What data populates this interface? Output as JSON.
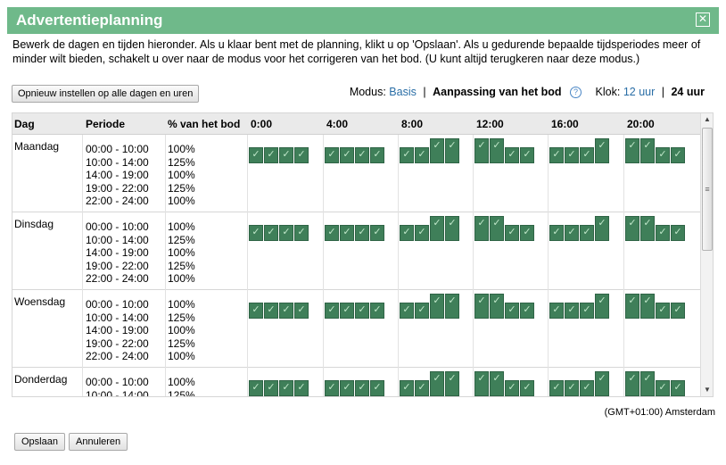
{
  "dialog": {
    "title": "Advertentieplanning",
    "close_label": "✕",
    "description": "Bewerk de dagen en tijden hieronder. Als u klaar bent met de planning, klikt u op 'Opslaan'. Als u gedurende bepaalde tijdsperiodes meer of minder wilt bieden, schakelt u over naar de modus voor het corrigeren van het bod. (U kunt altijd terugkeren naar deze modus.)",
    "reset_label": "Opnieuw instellen op alle dagen en uren",
    "timezone": "(GMT+01:00) Amsterdam"
  },
  "mode": {
    "label": "Modus:",
    "basic": "Basis",
    "separator": "|",
    "bid_adjust": "Aanpassing van het bod",
    "help_icon": "?",
    "clock_label": "Klok:",
    "clock_12": "12 uur",
    "clock_24": "24 uur"
  },
  "grid": {
    "headers": {
      "day": "Dag",
      "period": "Periode",
      "bid_pct": "% van het bod",
      "hours": [
        "0:00",
        "4:00",
        "8:00",
        "12:00",
        "16:00",
        "20:00"
      ]
    },
    "check_glyph": "✓",
    "days": [
      {
        "name": "Maandag",
        "periods": [
          "00:00 - 10:00",
          "10:00 - 14:00",
          "14:00 - 19:00",
          "19:00 - 22:00",
          "22:00 - 24:00"
        ],
        "bids": [
          "100%",
          "125%",
          "100%",
          "125%",
          "100%"
        ]
      },
      {
        "name": "Dinsdag",
        "periods": [
          "00:00 - 10:00",
          "10:00 - 14:00",
          "14:00 - 19:00",
          "19:00 - 22:00",
          "22:00 - 24:00"
        ],
        "bids": [
          "100%",
          "125%",
          "100%",
          "125%",
          "100%"
        ]
      },
      {
        "name": "Woensdag",
        "periods": [
          "00:00 - 10:00",
          "10:00 - 14:00",
          "14:00 - 19:00",
          "19:00 - 22:00",
          "22:00 - 24:00"
        ],
        "bids": [
          "100%",
          "125%",
          "100%",
          "125%",
          "100%"
        ]
      },
      {
        "name": "Donderdag",
        "periods": [
          "00:00 - 10:00",
          "10:00 - 14:00"
        ],
        "bids": [
          "100%",
          "125%"
        ]
      }
    ],
    "hourly_bid_pct": [
      100,
      100,
      100,
      100,
      100,
      100,
      100,
      100,
      100,
      100,
      125,
      125,
      125,
      125,
      100,
      100,
      100,
      100,
      100,
      125,
      125,
      125,
      100,
      100
    ]
  },
  "scroll": {
    "up": "▲",
    "down": "▼",
    "grip": "≡"
  },
  "footer": {
    "save_label": "Opslaan",
    "cancel_label": "Annuleren"
  },
  "colors": {
    "titlebar": "#6fb98a",
    "block": "#3f7f59",
    "link": "#2a6ea6"
  }
}
